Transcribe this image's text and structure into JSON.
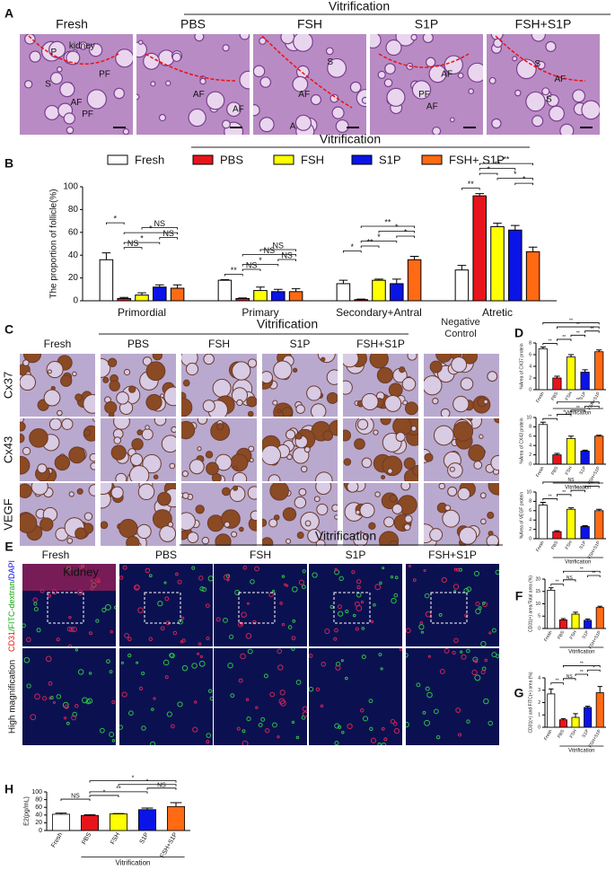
{
  "panel_labels": [
    "A",
    "B",
    "C",
    "D",
    "E",
    "F",
    "G",
    "H"
  ],
  "panel_a": {
    "header": "Vitrification",
    "columns": [
      "Fresh",
      "PBS",
      "FSH",
      "S1P",
      "FSH+S1P"
    ],
    "annotations": [
      [
        "kidney",
        "P",
        "S",
        "PF",
        "AF",
        "PF"
      ],
      [
        "AF",
        "AF"
      ],
      [
        "S",
        "AF",
        "A"
      ],
      [
        "AF",
        "PF",
        "AF"
      ],
      [
        "S",
        "AF",
        "S"
      ]
    ]
  },
  "panel_c": {
    "header": "Vitrification",
    "columns": [
      "Fresh",
      "PBS",
      "FSH",
      "S1P",
      "FSH+S1P",
      "Negative Control"
    ],
    "rows": [
      "Cx37",
      "Cx43",
      "VEGF"
    ]
  },
  "panel_e": {
    "header": "Vitrification",
    "columns": [
      "Fresh",
      "PBS",
      "FSH",
      "S1P",
      "FSH+S1P"
    ],
    "row_stain": [
      "CD31",
      "/FITC-dextran",
      "/DAPI"
    ],
    "row_magnified": "High magnification",
    "annotation": "Kidney"
  },
  "chart_data": [
    {
      "type": "bar",
      "header": "Vitrification",
      "ylabel": "The proportion of  follicle(%)",
      "categories": [
        "Primordial",
        "Primary",
        "Secondary+Antral",
        "Atretic"
      ],
      "series": [
        {
          "name": "Fresh",
          "color": "#ffffff",
          "values": [
            36,
            18,
            15,
            27
          ],
          "errors": [
            6,
            0.5,
            3,
            4
          ]
        },
        {
          "name": "PBS",
          "color": "#e8141b",
          "values": [
            2,
            2,
            1,
            92
          ],
          "errors": [
            1,
            0.5,
            0.5,
            2
          ]
        },
        {
          "name": "FSH",
          "color": "#ffff00",
          "values": [
            5,
            9,
            18,
            65
          ],
          "errors": [
            2,
            3,
            1,
            3
          ]
        },
        {
          "name": "S1P",
          "color": "#0a14e6",
          "values": [
            12,
            8,
            15,
            62
          ],
          "errors": [
            2,
            2,
            4,
            4
          ]
        },
        {
          "name": "FSH+ S1P",
          "color": "#ff6a13",
          "values": [
            11,
            8,
            36,
            43
          ],
          "errors": [
            3,
            2.5,
            3,
            4
          ]
        }
      ],
      "ylim": [
        0,
        100
      ],
      "yticks": [
        0,
        20,
        40,
        60,
        80,
        100
      ],
      "significance": [
        {
          "category": 0,
          "pair": [
            1,
            2
          ],
          "label": "NS"
        },
        {
          "category": 0,
          "pair": [
            1,
            3
          ],
          "label": "*"
        },
        {
          "category": 0,
          "pair": [
            3,
            4
          ],
          "label": "NS"
        },
        {
          "category": 0,
          "pair": [
            1,
            4
          ],
          "label": "*"
        },
        {
          "category": 0,
          "pair": [
            2,
            4
          ],
          "label": "NS"
        },
        {
          "category": 0,
          "pair": [
            0,
            1
          ],
          "label": "*"
        },
        {
          "category": 1,
          "pair": [
            0,
            1
          ],
          "label": "**"
        },
        {
          "category": 1,
          "pair": [
            1,
            2
          ],
          "label": "NS"
        },
        {
          "category": 1,
          "pair": [
            1,
            3
          ],
          "label": "*"
        },
        {
          "category": 1,
          "pair": [
            3,
            4
          ],
          "label": "NS"
        },
        {
          "category": 1,
          "pair": [
            1,
            4
          ],
          "label": "NS"
        },
        {
          "category": 1,
          "pair": [
            2,
            4
          ],
          "label": "NS"
        },
        {
          "category": 2,
          "pair": [
            0,
            1
          ],
          "label": "*"
        },
        {
          "category": 2,
          "pair": [
            1,
            2
          ],
          "label": "**"
        },
        {
          "category": 2,
          "pair": [
            1,
            3
          ],
          "label": "*"
        },
        {
          "category": 2,
          "pair": [
            3,
            4
          ],
          "label": "*"
        },
        {
          "category": 2,
          "pair": [
            2,
            4
          ],
          "label": "*"
        },
        {
          "category": 2,
          "pair": [
            1,
            4
          ],
          "label": "**"
        },
        {
          "category": 3,
          "pair": [
            0,
            1
          ],
          "label": "**"
        },
        {
          "category": 3,
          "pair": [
            3,
            4
          ],
          "label": "*"
        },
        {
          "category": 3,
          "pair": [
            2,
            4
          ],
          "label": "*"
        },
        {
          "category": 3,
          "pair": [
            1,
            2
          ],
          "label": "*"
        },
        {
          "category": 3,
          "pair": [
            1,
            3
          ],
          "label": "**"
        },
        {
          "category": 3,
          "pair": [
            1,
            4
          ],
          "label": "**"
        }
      ]
    },
    {
      "type": "bar",
      "label": "D",
      "ylabel": "%Area of CX37 protein",
      "xlabel": "Vitrification",
      "categories": [
        "Fresh",
        "PBS",
        "FSH",
        "S1P",
        "FSH+S1P"
      ],
      "colors": [
        "#ffffff",
        "#e8141b",
        "#ffff00",
        "#0a14e6",
        "#ff6a13"
      ],
      "values": [
        7,
        2,
        5.6,
        3,
        6.5
      ],
      "errors": [
        0.3,
        0.3,
        0.4,
        0.4,
        0.3
      ],
      "ylim": [
        0,
        8
      ],
      "yticks": [
        0,
        2,
        4,
        6,
        8
      ],
      "significance": [
        {
          "pair": [
            0,
            1
          ],
          "label": "**"
        },
        {
          "pair": [
            1,
            2
          ],
          "label": "**"
        },
        {
          "pair": [
            2,
            3
          ],
          "label": "**"
        },
        {
          "pair": [
            3,
            4
          ],
          "label": "**"
        },
        {
          "pair": [
            1,
            4
          ],
          "label": "**"
        },
        {
          "pair": [
            0,
            4
          ],
          "label": "**"
        }
      ]
    },
    {
      "type": "bar",
      "label": "",
      "ylabel": "%Area of CX43 protein",
      "xlabel": "Vitrification",
      "categories": [
        "Fresh",
        "PBS",
        "FSH",
        "S1P",
        "FSH+S1P"
      ],
      "colors": [
        "#ffffff",
        "#e8141b",
        "#ffff00",
        "#0a14e6",
        "#ff6a13"
      ],
      "values": [
        8.5,
        2,
        5.5,
        2.8,
        6
      ],
      "errors": [
        0.5,
        0.3,
        0.5,
        0.2,
        0.2
      ],
      "ylim": [
        0,
        10
      ],
      "yticks": [
        0,
        2,
        4,
        6,
        8,
        10
      ],
      "significance": [
        {
          "pair": [
            0,
            1
          ],
          "label": "**"
        },
        {
          "pair": [
            1,
            2
          ],
          "label": "*"
        },
        {
          "pair": [
            2,
            3
          ],
          "label": "**"
        },
        {
          "pair": [
            3,
            4
          ],
          "label": "**"
        },
        {
          "pair": [
            1,
            4
          ],
          "label": "**"
        }
      ]
    },
    {
      "type": "bar",
      "label": "",
      "ylabel": "%Area of VEGF protein",
      "xlabel": "Vitrification",
      "categories": [
        "Fresh",
        "PBS",
        "FSH",
        "S1P",
        "FSH+S1P"
      ],
      "colors": [
        "#ffffff",
        "#e8141b",
        "#ffff00",
        "#0a14e6",
        "#ff6a13"
      ],
      "values": [
        7.2,
        1.5,
        6.3,
        2.6,
        6
      ],
      "errors": [
        0.6,
        0.2,
        0.3,
        0.2,
        0.3
      ],
      "ylim": [
        0,
        10
      ],
      "yticks": [
        0,
        2,
        4,
        6,
        8,
        10
      ],
      "significance": [
        {
          "pair": [
            0,
            1
          ],
          "label": "**"
        },
        {
          "pair": [
            1,
            2
          ],
          "label": "**"
        },
        {
          "pair": [
            2,
            3
          ],
          "label": "**"
        },
        {
          "pair": [
            3,
            4
          ],
          "label": "**"
        },
        {
          "pair": [
            0,
            4
          ],
          "label": "NS"
        }
      ]
    },
    {
      "type": "bar",
      "label": "F",
      "ylabel": "CD31(+) area/Total area (%)",
      "xlabel": "Vitrification",
      "categories": [
        "Fresh",
        "PBS",
        "FSH",
        "S1P",
        "FSH+S1P"
      ],
      "colors": [
        "#ffffff",
        "#e8141b",
        "#ffff00",
        "#0a14e6",
        "#ff6a13"
      ],
      "values": [
        15.5,
        3.5,
        5.8,
        3.3,
        8.5
      ],
      "errors": [
        1,
        0.5,
        0.8,
        0.5,
        0.5
      ],
      "ylim": [
        0,
        20
      ],
      "yticks": [
        0,
        5,
        10,
        15,
        20
      ],
      "significance": [
        {
          "pair": [
            0,
            1
          ],
          "label": "**"
        },
        {
          "pair": [
            1,
            2
          ],
          "label": "NS"
        },
        {
          "pair": [
            3,
            4
          ],
          "label": "**"
        },
        {
          "pair": [
            1,
            4
          ],
          "label": "**"
        }
      ]
    },
    {
      "type": "bar",
      "label": "G",
      "ylabel": "CD31(+) and FITC(+) area (%)",
      "xlabel": "Vitrification",
      "categories": [
        "Fresh",
        "PBS",
        "FSH",
        "S1P",
        "FSH+S1P"
      ],
      "colors": [
        "#ffffff",
        "#e8141b",
        "#ffff00",
        "#0a14e6",
        "#ff6a13"
      ],
      "values": [
        2.7,
        0.6,
        0.8,
        1.6,
        2.8
      ],
      "errors": [
        0.4,
        0.1,
        0.3,
        0.1,
        0.5
      ],
      "ylim": [
        0,
        4
      ],
      "yticks": [
        0,
        1,
        2,
        3,
        4
      ],
      "significance": [
        {
          "pair": [
            0,
            1
          ],
          "label": "**"
        },
        {
          "pair": [
            1,
            2
          ],
          "label": "NS"
        },
        {
          "pair": [
            2,
            3
          ],
          "label": "**"
        },
        {
          "pair": [
            3,
            4
          ],
          "label": "*"
        },
        {
          "pair": [
            1,
            4
          ],
          "label": "**"
        }
      ]
    },
    {
      "type": "bar",
      "label": "H",
      "ylabel": "E2(pg/mL)",
      "xlabel": "Vitrification",
      "categories": [
        "Fresh",
        "PBS",
        "FSH",
        "S1P",
        "FSH+S1P"
      ],
      "colors": [
        "#ffffff",
        "#e8141b",
        "#ffff00",
        "#0a14e6",
        "#ff6a13"
      ],
      "values": [
        42,
        39,
        43,
        54,
        62
      ],
      "errors": [
        3,
        2,
        1,
        4,
        10
      ],
      "ylim": [
        0,
        100
      ],
      "yticks": [
        0,
        20,
        40,
        60,
        80,
        100
      ],
      "significance": [
        {
          "pair": [
            0,
            1
          ],
          "label": "NS"
        },
        {
          "pair": [
            1,
            2
          ],
          "label": "*"
        },
        {
          "pair": [
            1,
            3
          ],
          "label": "**"
        },
        {
          "pair": [
            3,
            4
          ],
          "label": "NS"
        },
        {
          "pair": [
            2,
            4
          ],
          "label": "*"
        },
        {
          "pair": [
            1,
            4
          ],
          "label": "*"
        }
      ]
    }
  ]
}
